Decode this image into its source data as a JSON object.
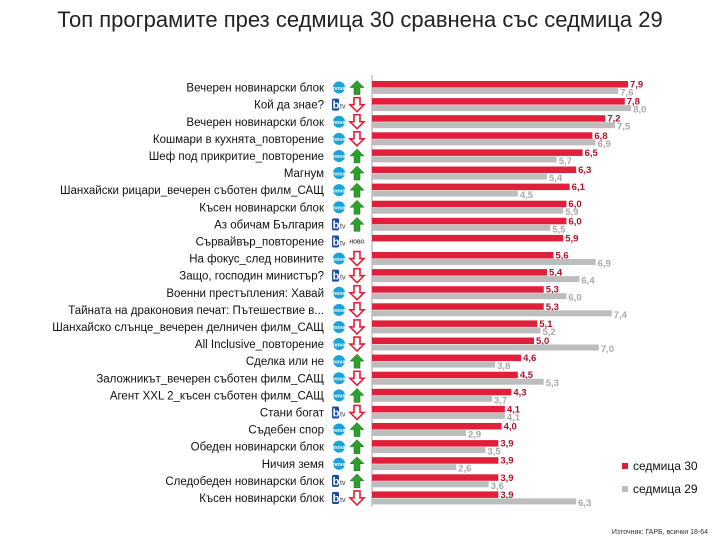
{
  "title": "Топ програмите през седмица 30 сравнена със седмица 29",
  "source": "Източник: ГАРБ, всички 18-64",
  "colors": {
    "current": "#e0203a",
    "previous": "#bdbdbd",
    "up": "#2e9e2e",
    "down": "#e0203a",
    "nova": "#1aa3d9",
    "btv": "#1a4d9e",
    "btv_text": "#333333"
  },
  "chart_data": {
    "type": "bar",
    "orientation": "horizontal",
    "grid": false,
    "legend_position": "bottom-right",
    "series": [
      {
        "name": "седмица 30",
        "color": "#e0203a",
        "values": [
          7.9,
          7.8,
          7.2,
          6.8,
          6.5,
          6.3,
          6.1,
          6.0,
          6.0,
          5.9,
          5.6,
          5.4,
          5.3,
          5.3,
          5.1,
          5.0,
          4.6,
          4.5,
          4.3,
          4.1,
          4.0,
          3.9,
          3.9,
          3.9,
          3.9
        ],
        "labels": [
          "7,9",
          "7,8",
          "7,2",
          "6,8",
          "6,5",
          "6,3",
          "6,1",
          "6,0",
          "6,0",
          "5,9",
          "5,6",
          "5,4",
          "5,3",
          "5,3",
          "5,1",
          "5,0",
          "4,6",
          "4,5",
          "4,3",
          "4,1",
          "4,0",
          "3,9",
          "3,9",
          "3,9",
          "3,9"
        ]
      },
      {
        "name": "седмица 29",
        "color": "#bdbdbd",
        "values": [
          7.6,
          8.0,
          7.5,
          6.9,
          5.7,
          5.4,
          4.5,
          5.9,
          5.5,
          null,
          6.9,
          6.4,
          6.0,
          7.4,
          5.2,
          7.0,
          3.8,
          5.3,
          3.7,
          4.1,
          2.9,
          3.5,
          2.6,
          3.6,
          6.3
        ],
        "labels": [
          "7,6",
          "8,0",
          "7,5",
          "6,9",
          "5,7",
          "5,4",
          "4,5",
          "5,9",
          "5,5",
          "",
          "6,9",
          "6,4",
          "6,0",
          "7,4",
          "5,2",
          "7,0",
          "3,8",
          "5,3",
          "3,7",
          "4,1",
          "2,9",
          "3,5",
          "2,6",
          "3,6",
          "6,3"
        ]
      }
    ],
    "categories": [
      "Вечерен новинарски блок",
      "Кой да знае?",
      "Вечерен новинарски блок",
      "Кошмари в кухнята_повторение",
      "Шеф под прикритие_повторение",
      "Магнум",
      "Шанхайски рицари_вечерен съботен филм_САЩ",
      "Късен новинарски блок",
      "Аз обичам България",
      "Сървайвър_повторение",
      "На фокус_след новините",
      "Защо, господин министър?",
      "Военни престъпления: Хавай",
      "Тайната на драконовия печат: Пътешествие в...",
      "Шанхайско слънце_вечерен делничен филм_САЩ",
      "All Inclusive_повторение",
      "Сделка или не",
      "Заложникът_вечерен съботен филм_САЩ",
      "Агент XXL 2_късен съботен филм_САЩ",
      "Стани богат",
      "Съдебен спор",
      "Обеден новинарски блок",
      "Ничия земя",
      "Следобеден новинарски блок",
      "Късен новинарски блок"
    ],
    "channels": [
      "nova",
      "btv",
      "nova",
      "nova",
      "nova",
      "nova",
      "nova",
      "nova",
      "btv",
      "btv",
      "nova",
      "btv",
      "nova",
      "nova",
      "nova",
      "nova",
      "nova",
      "nova",
      "nova",
      "btv",
      "nova",
      "nova",
      "nova",
      "btv",
      "btv"
    ],
    "trend": [
      "up",
      "down",
      "down",
      "down",
      "up",
      "up",
      "up",
      "up",
      "up",
      "new",
      "down",
      "down",
      "down",
      "down",
      "down",
      "down",
      "up",
      "down",
      "up",
      "down",
      "up",
      "up",
      "up",
      "up",
      "down"
    ],
    "new_badge": "НОВО",
    "channel_labels": {
      "nova": "nova",
      "btv": "btv"
    },
    "xlim": [
      0,
      8.5
    ]
  }
}
